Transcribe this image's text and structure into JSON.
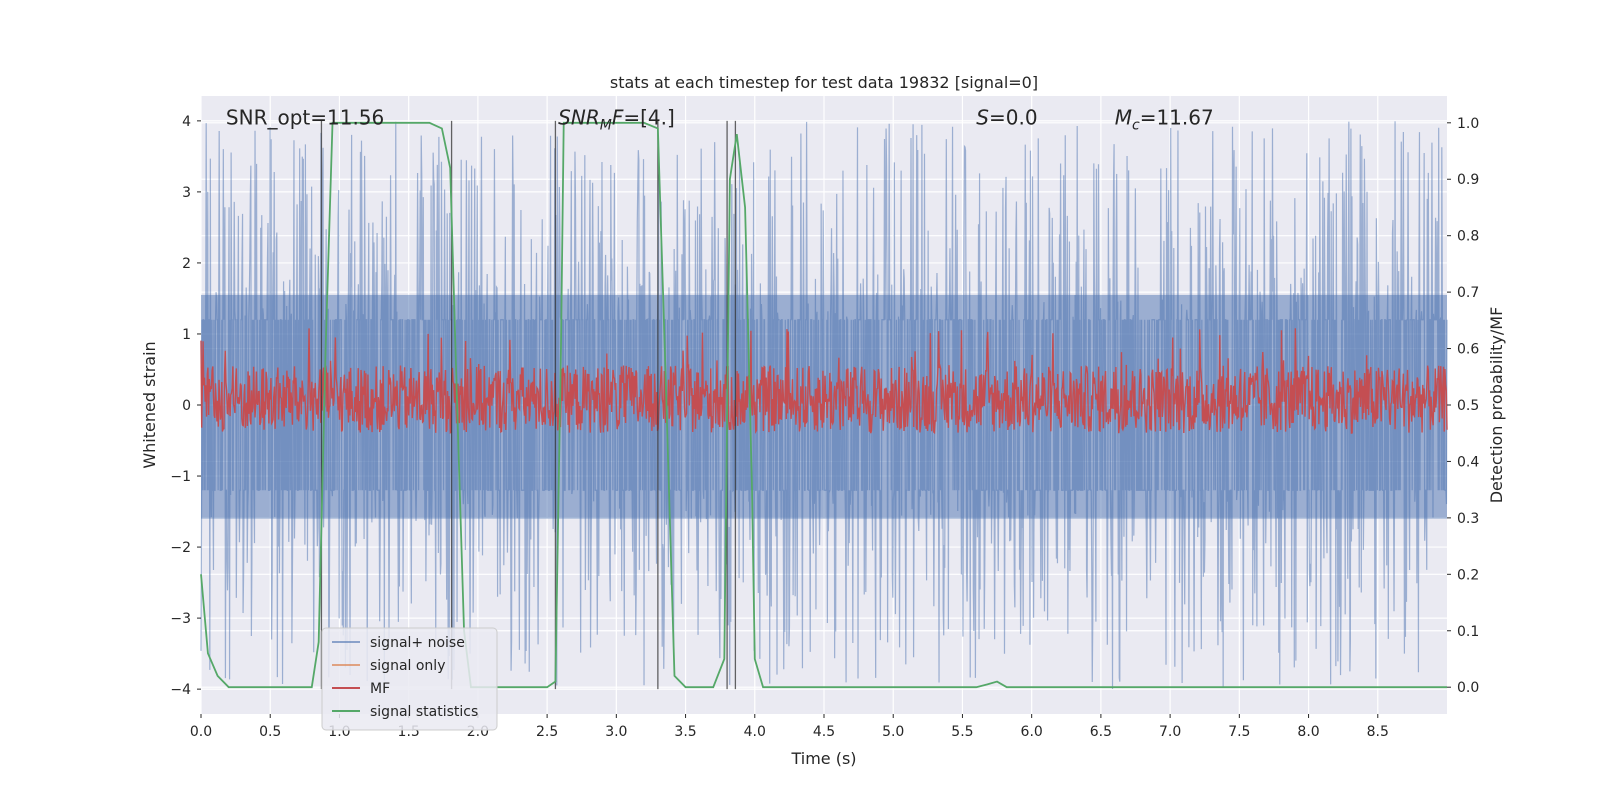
{
  "chart_data": {
    "type": "line",
    "title": "stats at each timestep for test data 19832 [signal=0]",
    "xlabel": "Time (s)",
    "ylabel": "Whitened strain",
    "y2label": "Detection probability/MF",
    "xlim": [
      0,
      9.0
    ],
    "ylim": [
      -4.35,
      4.35
    ],
    "y2lim": [
      -0.0475,
      1.0475
    ],
    "xticks": [
      "0.0",
      "0.5",
      "1.0",
      "1.5",
      "2.0",
      "2.5",
      "3.0",
      "3.5",
      "4.0",
      "4.5",
      "5.0",
      "5.5",
      "6.0",
      "6.5",
      "7.0",
      "7.5",
      "8.0",
      "8.5"
    ],
    "xtick_values": [
      0,
      0.5,
      1,
      1.5,
      2,
      2.5,
      3,
      3.5,
      4,
      4.5,
      5,
      5.5,
      6,
      6.5,
      7,
      7.5,
      8,
      8.5
    ],
    "yticks": [
      "4",
      "3",
      "2",
      "1",
      "0",
      "−1",
      "−2",
      "−3",
      "−4"
    ],
    "ytick_values": [
      4,
      3,
      2,
      1,
      0,
      -1,
      -2,
      -3,
      -4
    ],
    "y2ticks": [
      "1.0",
      "0.9",
      "0.8",
      "0.7",
      "0.6",
      "0.5",
      "0.4",
      "0.3",
      "0.2",
      "0.1",
      "0.0"
    ],
    "y2tick_values": [
      1.0,
      0.9,
      0.8,
      0.7,
      0.6,
      0.5,
      0.4,
      0.3,
      0.2,
      0.1,
      0.0
    ],
    "annotations": [
      {
        "text": "SNR_opt=11.56",
        "x": 0.18
      },
      {
        "text": "SNR_MF=[4.]",
        "x": 2.58
      },
      {
        "text": "S=0.0",
        "x": 5.6
      },
      {
        "text": "M_c=11.67",
        "x": 6.6
      }
    ],
    "annotation_y": 4.05,
    "vlines_x": [
      0.87,
      1.81,
      2.56,
      3.3,
      3.8,
      3.86
    ],
    "noise": {
      "name": "signal+ noise",
      "color": "#4c72b0",
      "band": [
        -1.6,
        1.55
      ],
      "spike_max": 4.0,
      "spike_min": -4.0,
      "points": 2400
    },
    "signal_only": {
      "name": "signal only",
      "color": "#dd8452"
    },
    "mf": {
      "name": "MF",
      "color": "#c44e52",
      "base": 0.51,
      "amp": 0.06,
      "points": 1800
    },
    "signal_statistics": {
      "name": "signal statistics",
      "color": "#55a868",
      "points": [
        [
          0.0,
          0.2
        ],
        [
          0.05,
          0.06
        ],
        [
          0.12,
          0.02
        ],
        [
          0.2,
          0.0
        ],
        [
          0.3,
          0.0
        ],
        [
          0.4,
          0.0
        ],
        [
          0.5,
          0.0
        ],
        [
          0.6,
          0.0
        ],
        [
          0.7,
          0.0
        ],
        [
          0.8,
          0.0
        ],
        [
          0.85,
          0.08
        ],
        [
          0.9,
          0.6
        ],
        [
          0.95,
          1.0
        ],
        [
          1.1,
          1.0
        ],
        [
          1.3,
          1.0
        ],
        [
          1.5,
          1.0
        ],
        [
          1.65,
          1.0
        ],
        [
          1.74,
          0.99
        ],
        [
          1.8,
          0.92
        ],
        [
          1.85,
          0.5
        ],
        [
          1.9,
          0.1
        ],
        [
          1.95,
          0.0
        ],
        [
          2.1,
          0.0
        ],
        [
          2.3,
          0.0
        ],
        [
          2.5,
          0.0
        ],
        [
          2.56,
          0.01
        ],
        [
          2.6,
          0.6
        ],
        [
          2.62,
          1.0
        ],
        [
          2.8,
          1.0
        ],
        [
          3.0,
          1.0
        ],
        [
          3.2,
          1.0
        ],
        [
          3.3,
          0.99
        ],
        [
          3.35,
          0.6
        ],
        [
          3.42,
          0.02
        ],
        [
          3.5,
          0.0
        ],
        [
          3.6,
          0.0
        ],
        [
          3.7,
          0.0
        ],
        [
          3.78,
          0.05
        ],
        [
          3.82,
          0.9
        ],
        [
          3.87,
          0.98
        ],
        [
          3.93,
          0.85
        ],
        [
          3.98,
          0.35
        ],
        [
          4.0,
          0.05
        ],
        [
          4.06,
          0.0
        ],
        [
          4.3,
          0.0
        ],
        [
          4.6,
          0.0
        ],
        [
          5.0,
          0.0
        ],
        [
          5.3,
          0.0
        ],
        [
          5.6,
          0.0
        ],
        [
          5.68,
          0.005
        ],
        [
          5.75,
          0.01
        ],
        [
          5.82,
          0.0
        ],
        [
          5.95,
          0.0
        ],
        [
          6.3,
          0.0
        ],
        [
          7.0,
          0.0
        ],
        [
          7.5,
          0.0
        ],
        [
          8.0,
          0.0
        ],
        [
          8.5,
          0.0
        ],
        [
          9.0,
          0.0
        ]
      ]
    },
    "legend": {
      "placement": "lower-left",
      "entries": [
        {
          "label": "signal+ noise",
          "color": "#4c72b0"
        },
        {
          "label": "signal only",
          "color": "#dd8452"
        },
        {
          "label": "MF",
          "color": "#c44e52"
        },
        {
          "label": "signal statistics",
          "color": "#55a868"
        }
      ]
    },
    "background": "#eaeaf2",
    "grid": true
  }
}
